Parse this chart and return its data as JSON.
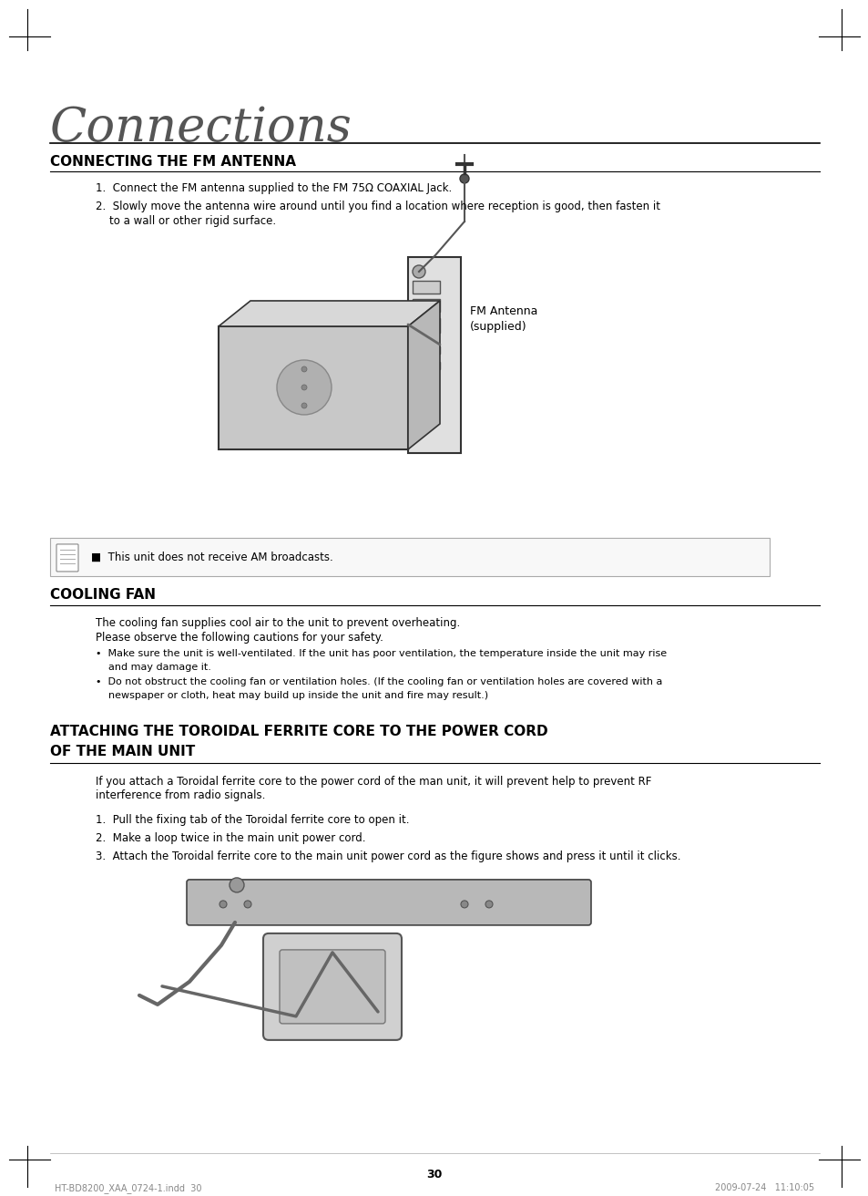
{
  "bg_color": "#ffffff",
  "title_connections": "Connections",
  "section1_title": "CONNECTING THE FM ANTENNA",
  "section1_step1": "1.  Connect the FM antenna supplied to the FM 75Ω COAXIAL Jack.",
  "section1_step2_line1": "2.  Slowly move the antenna wire around until you find a location where reception is good, then fasten it",
  "section1_step2_line2": "    to a wall or other rigid surface.",
  "note_text": "■  This unit does not receive AM broadcasts.",
  "section2_title": "COOLING FAN",
  "section2_para1": "The cooling fan supplies cool air to the unit to prevent overheating.",
  "section2_para2": "Please observe the following cautions for your safety.",
  "section2_bullet1_line1": "•  Make sure the unit is well-ventilated. If the unit has poor ventilation, the temperature inside the unit may rise",
  "section2_bullet1_line2": "    and may damage it.",
  "section2_bullet2_line1": "•  Do not obstruct the cooling fan or ventilation holes. (If the cooling fan or ventilation holes are covered with a",
  "section2_bullet2_line2": "    newspaper or cloth, heat may build up inside the unit and fire may result.)",
  "section3_title_line1": "ATTACHING THE TOROIDAL FERRITE CORE TO THE POWER CORD",
  "section3_title_line2": "OF THE MAIN UNIT",
  "section3_intro_line1": "If you attach a Toroidal ferrite core to the power cord of the man unit, it will prevent help to prevent RF",
  "section3_intro_line2": "interference from radio signals.",
  "section3_step1": "1.  Pull the fixing tab of the Toroidal ferrite core to open it.",
  "section3_step2": "2.  Make a loop twice in the main unit power cord.",
  "section3_step3": "3.  Attach the Toroidal ferrite core to the main unit power cord as the figure shows and press it until it clicks.",
  "fm_antenna_label_line1": "FM Antenna",
  "fm_antenna_label_line2": "(supplied)",
  "page_number": "30",
  "footer_left": "HT-BD8200_XAA_0724-1.indd  30",
  "footer_right": "2009-07-24   11:10:05"
}
